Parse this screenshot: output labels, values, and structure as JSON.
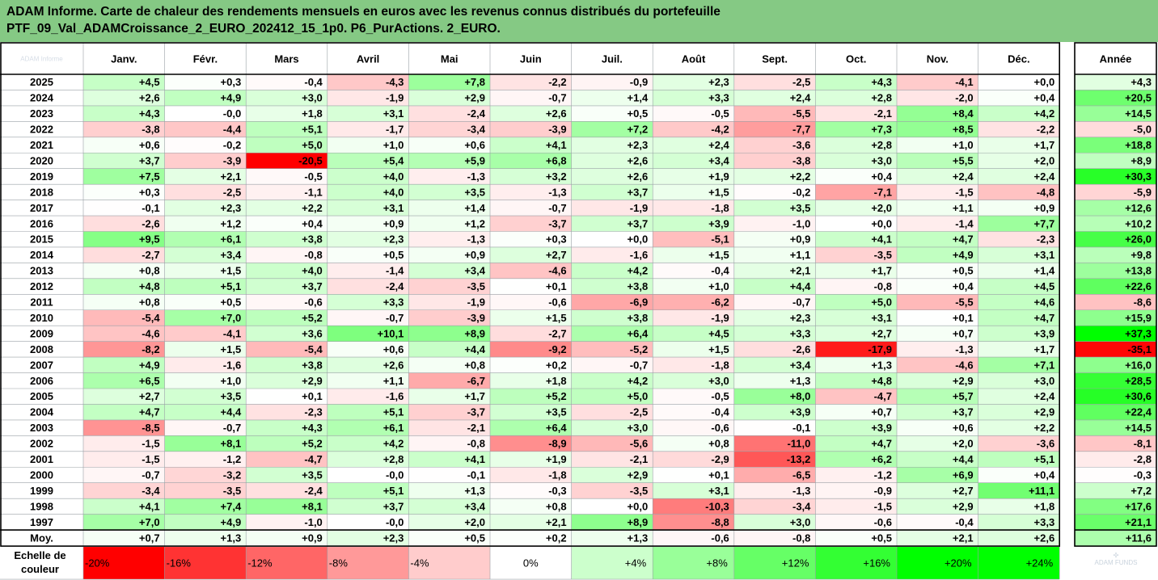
{
  "title": {
    "line1": "ADAM Informe. Carte de chaleur des rendements mensuels en euros avec les revenus connus distribués du portefeuille",
    "line2": "PTF_09_Val_ADAMCroissance_2_EURO_202412_15_1p0. P6_PurActions. 2_EURO."
  },
  "chart_data": {
    "type": "heatmap",
    "corner_label": "ADAM Informe",
    "columns": [
      "Janv.",
      "Févr.",
      "Mars",
      "Avril",
      "Mai",
      "Juin",
      "Juil.",
      "Août",
      "Sept.",
      "Oct.",
      "Nov.",
      "Déc."
    ],
    "annual_label": "Année",
    "rows": [
      {
        "year": "2025",
        "values": [
          "+4,5",
          "+0,3",
          "-0,4",
          "-4,3",
          "+7,8",
          "-2,2",
          "-0,9",
          "+2,3",
          "-2,5",
          "+4,3",
          "-4,1",
          "+0,0"
        ],
        "annual": "+4,3"
      },
      {
        "year": "2024",
        "values": [
          "+2,6",
          "+4,9",
          "+3,0",
          "-1,9",
          "+2,9",
          "-0,7",
          "+1,4",
          "+3,3",
          "+2,4",
          "+2,8",
          "-2,0",
          "+0,4"
        ],
        "annual": "+20,5"
      },
      {
        "year": "2023",
        "values": [
          "+4,3",
          "-0,0",
          "+1,8",
          "+3,1",
          "-2,4",
          "+2,6",
          "+0,5",
          "-0,5",
          "-5,5",
          "-2,1",
          "+8,4",
          "+4,2"
        ],
        "annual": "+14,5"
      },
      {
        "year": "2022",
        "values": [
          "-3,8",
          "-4,4",
          "+5,1",
          "-1,7",
          "-3,4",
          "-3,9",
          "+7,2",
          "-4,2",
          "-7,7",
          "+7,3",
          "+8,5",
          "-2,2"
        ],
        "annual": "-5,0"
      },
      {
        "year": "2021",
        "values": [
          "+0,6",
          "-0,2",
          "+5,0",
          "+1,0",
          "+0,6",
          "+4,1",
          "+2,3",
          "+2,4",
          "-3,6",
          "+2,8",
          "+1,0",
          "+1,7"
        ],
        "annual": "+18,8"
      },
      {
        "year": "2020",
        "values": [
          "+3,7",
          "-3,9",
          "-20,5",
          "+5,4",
          "+5,9",
          "+6,8",
          "+2,6",
          "+3,4",
          "-3,8",
          "+3,0",
          "+5,5",
          "+2,0"
        ],
        "annual": "+8,9"
      },
      {
        "year": "2019",
        "values": [
          "+7,5",
          "+2,1",
          "-0,5",
          "+4,0",
          "-1,3",
          "+3,2",
          "+2,6",
          "+1,9",
          "+2,2",
          "+0,4",
          "+2,4",
          "+2,4"
        ],
        "annual": "+30,3"
      },
      {
        "year": "2018",
        "values": [
          "+0,3",
          "-2,5",
          "-1,1",
          "+4,0",
          "+3,5",
          "-1,3",
          "+3,7",
          "+1,5",
          "-0,2",
          "-7,1",
          "-1,5",
          "-4,8"
        ],
        "annual": "-5,9"
      },
      {
        "year": "2017",
        "values": [
          "-0,1",
          "+2,3",
          "+2,2",
          "+3,1",
          "+1,4",
          "-0,7",
          "-1,9",
          "-1,8",
          "+3,5",
          "+2,0",
          "+1,1",
          "+0,9"
        ],
        "annual": "+12,6"
      },
      {
        "year": "2016",
        "values": [
          "-2,6",
          "+1,2",
          "+0,4",
          "+0,9",
          "+1,2",
          "-3,7",
          "+3,7",
          "+3,9",
          "-1,0",
          "+0,0",
          "-1,4",
          "+7,7"
        ],
        "annual": "+10,2"
      },
      {
        "year": "2015",
        "values": [
          "+9,5",
          "+6,1",
          "+3,8",
          "+2,3",
          "-1,3",
          "+0,3",
          "+0,0",
          "-5,1",
          "+0,9",
          "+4,1",
          "+4,7",
          "-2,3"
        ],
        "annual": "+26,0"
      },
      {
        "year": "2014",
        "values": [
          "-2,7",
          "+3,4",
          "-0,8",
          "+0,5",
          "+0,9",
          "+2,7",
          "-1,6",
          "+1,5",
          "+1,1",
          "-3,5",
          "+4,9",
          "+3,1"
        ],
        "annual": "+9,8"
      },
      {
        "year": "2013",
        "values": [
          "+0,8",
          "+1,5",
          "+4,0",
          "-1,4",
          "+3,4",
          "-4,6",
          "+4,2",
          "-0,4",
          "+2,1",
          "+1,7",
          "+0,5",
          "+1,4"
        ],
        "annual": "+13,8"
      },
      {
        "year": "2012",
        "values": [
          "+4,8",
          "+5,1",
          "+3,7",
          "-2,4",
          "-3,5",
          "+0,1",
          "+3,8",
          "+1,0",
          "+4,4",
          "-0,8",
          "+0,4",
          "+4,5"
        ],
        "annual": "+22,6"
      },
      {
        "year": "2011",
        "values": [
          "+0,8",
          "+0,5",
          "-0,6",
          "+3,3",
          "-1,9",
          "-0,6",
          "-6,9",
          "-6,2",
          "-0,7",
          "+5,0",
          "-5,5",
          "+4,6"
        ],
        "annual": "-8,6"
      },
      {
        "year": "2010",
        "values": [
          "-5,4",
          "+7,0",
          "+5,2",
          "-0,7",
          "-3,9",
          "+1,5",
          "+3,8",
          "-1,9",
          "+2,3",
          "+3,1",
          "+0,1",
          "+4,7"
        ],
        "annual": "+15,9"
      },
      {
        "year": "2009",
        "values": [
          "-4,6",
          "-4,1",
          "+3,6",
          "+10,1",
          "+8,9",
          "-2,7",
          "+6,4",
          "+4,5",
          "+3,3",
          "+2,7",
          "+0,7",
          "+3,9"
        ],
        "annual": "+37,3"
      },
      {
        "year": "2008",
        "values": [
          "-8,2",
          "+1,5",
          "-5,4",
          "+0,6",
          "+4,4",
          "-9,2",
          "-5,2",
          "+1,5",
          "-2,6",
          "-17,9",
          "-1,3",
          "+1,7"
        ],
        "annual": "-35,1"
      },
      {
        "year": "2007",
        "values": [
          "+4,9",
          "-1,6",
          "+3,8",
          "+2,6",
          "+0,8",
          "+0,2",
          "-0,7",
          "-1,8",
          "+3,4",
          "+1,3",
          "-4,6",
          "+7,1"
        ],
        "annual": "+16,0"
      },
      {
        "year": "2006",
        "values": [
          "+6,5",
          "+1,0",
          "+2,9",
          "+1,1",
          "-6,7",
          "+1,8",
          "+4,2",
          "+3,0",
          "+1,3",
          "+4,8",
          "+2,9",
          "+3,0"
        ],
        "annual": "+28,5"
      },
      {
        "year": "2005",
        "values": [
          "+2,7",
          "+3,5",
          "+0,1",
          "-1,6",
          "+1,7",
          "+5,2",
          "+5,0",
          "-0,5",
          "+8,0",
          "-4,7",
          "+5,7",
          "+2,4"
        ],
        "annual": "+30,6"
      },
      {
        "year": "2004",
        "values": [
          "+4,7",
          "+4,4",
          "-2,3",
          "+5,1",
          "-3,7",
          "+3,5",
          "-2,5",
          "-0,4",
          "+3,9",
          "+0,7",
          "+3,7",
          "+2,9"
        ],
        "annual": "+22,4"
      },
      {
        "year": "2003",
        "values": [
          "-8,5",
          "-0,7",
          "+4,3",
          "+6,1",
          "-2,1",
          "+6,4",
          "+3,0",
          "-0,6",
          "-0,1",
          "+3,9",
          "+0,6",
          "+2,2"
        ],
        "annual": "+14,5"
      },
      {
        "year": "2002",
        "values": [
          "-1,5",
          "+8,1",
          "+5,2",
          "+4,2",
          "-0,8",
          "-8,9",
          "-5,6",
          "+0,8",
          "-11,0",
          "+4,7",
          "+2,0",
          "-3,6"
        ],
        "annual": "-8,1"
      },
      {
        "year": "2001",
        "values": [
          "-1,5",
          "-1,2",
          "-4,7",
          "+2,8",
          "+4,1",
          "+1,9",
          "-2,1",
          "-2,9",
          "-13,2",
          "+6,2",
          "+4,4",
          "+5,1"
        ],
        "annual": "-2,8"
      },
      {
        "year": "2000",
        "values": [
          "-0,7",
          "-3,2",
          "+3,5",
          "-0,0",
          "-0,1",
          "-1,8",
          "+2,9",
          "+0,1",
          "-6,5",
          "-1,2",
          "+6,9",
          "+0,4"
        ],
        "annual": "-0,3"
      },
      {
        "year": "1999",
        "values": [
          "-3,4",
          "-3,5",
          "-2,4",
          "+5,1",
          "+1,3",
          "-0,3",
          "-3,5",
          "+3,1",
          "-1,3",
          "-0,9",
          "+2,7",
          "+11,1"
        ],
        "annual": "+7,2"
      },
      {
        "year": "1998",
        "values": [
          "+4,1",
          "+7,4",
          "+8,1",
          "+3,7",
          "+3,4",
          "+0,8",
          "+0,0",
          "-10,3",
          "-3,4",
          "-1,5",
          "+2,9",
          "+1,8"
        ],
        "annual": "+17,6"
      },
      {
        "year": "1997",
        "values": [
          "+7,0",
          "+4,9",
          "-1,0",
          "-0,0",
          "+2,0",
          "+2,1",
          "+8,9",
          "-8,8",
          "+3,0",
          "-0,6",
          "-0,4",
          "+3,3"
        ],
        "annual": "+21,1"
      }
    ],
    "average": {
      "label": "Moy.",
      "values": [
        "+0,7",
        "+1,3",
        "+0,9",
        "+2,3",
        "+0,5",
        "+0,2",
        "+1,3",
        "-0,6",
        "-0,8",
        "+0,5",
        "+2,1",
        "+2,6"
      ],
      "annual": "+11,6"
    },
    "scale": {
      "label_line1": "Echelle de",
      "label_line2": "couleur",
      "stops": [
        {
          "label": "-20%",
          "value": -20,
          "color": "#ff0000"
        },
        {
          "label": "-16%",
          "value": -16,
          "color": "#ff3333"
        },
        {
          "label": "-12%",
          "value": -12,
          "color": "#ff6666"
        },
        {
          "label": "-8%",
          "value": -8,
          "color": "#ff9999"
        },
        {
          "label": "-4%",
          "value": -4,
          "color": "#ffcccc"
        },
        {
          "label": "0%",
          "value": 0,
          "color": "#ffffff"
        },
        {
          "label": "+4%",
          "value": 4,
          "color": "#ccffcc"
        },
        {
          "label": "+8%",
          "value": 8,
          "color": "#99ff99"
        },
        {
          "label": "+12%",
          "value": 12,
          "color": "#66ff66"
        },
        {
          "label": "+16%",
          "value": 16,
          "color": "#33ff33"
        },
        {
          "label": "+20%",
          "value": 20,
          "color": "#00ff00"
        },
        {
          "label": "+24%",
          "value": 24,
          "color": "#00ff00"
        }
      ]
    },
    "colors": {
      "negative": "#ff0000",
      "zero": "#ffffff",
      "positive": "#00ff00",
      "title_bg": "#85c984"
    },
    "logo_text": "ADAM FUNDS"
  }
}
